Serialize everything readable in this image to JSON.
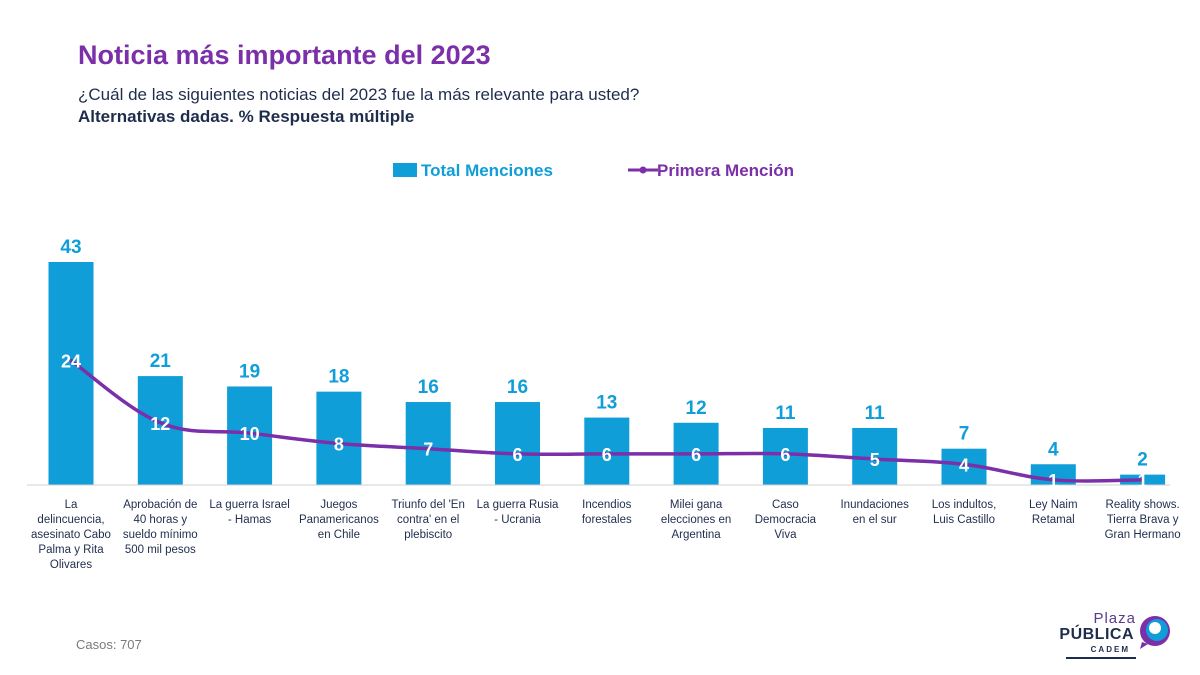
{
  "header": {
    "title": "Noticia más importante del 2023",
    "subtitle": "¿Cuál de las siguientes noticias del 2023 fue la más relevante para usted?",
    "subtitle2": "Alternativas dadas. % Respuesta múltiple"
  },
  "footer": {
    "cases": "Casos: 707"
  },
  "logo": {
    "line1": "Plaza",
    "line2": "PÚBLICA",
    "line3": "CADEM"
  },
  "colors": {
    "bar": "#0f9ed8",
    "line": "#7b2fa8",
    "bar_label": "#0f9ed8",
    "title": "#7b2fa8",
    "axis_text": "#1f2d4d"
  },
  "chart_data": {
    "type": "bar",
    "legend_position": "top-center",
    "categories": [
      [
        "La",
        "delincuencia,",
        "asesinato Cabo",
        "Palma y Rita",
        "Olivares"
      ],
      [
        "Aprobación de",
        "40 horas y",
        "sueldo mínimo",
        "500 mil pesos"
      ],
      [
        "La guerra Israel",
        "- Hamas"
      ],
      [
        "Juegos",
        "Panamericanos",
        "en Chile"
      ],
      [
        "Triunfo del 'En",
        "contra' en el",
        "plebiscito"
      ],
      [
        "La guerra Rusia",
        "- Ucrania"
      ],
      [
        "Incendios",
        "forestales"
      ],
      [
        "Milei gana",
        "elecciones en",
        "Argentina"
      ],
      [
        "Caso",
        "Democracia",
        "Viva"
      ],
      [
        "Inundaciones",
        "en el sur"
      ],
      [
        "Los indultos,",
        "Luis Castillo"
      ],
      [
        "Ley Naim",
        "Retamal"
      ],
      [
        "Reality shows.",
        "Tierra Brava y",
        "Gran Hermano"
      ]
    ],
    "series": [
      {
        "name": "Total Menciones",
        "type": "bar",
        "values": [
          43,
          21,
          19,
          18,
          16,
          16,
          13,
          12,
          11,
          11,
          7,
          4,
          2
        ]
      },
      {
        "name": "Primera Mención",
        "type": "line",
        "values": [
          24,
          12,
          10,
          8,
          7,
          6,
          6,
          6,
          6,
          5,
          4,
          1,
          1
        ]
      }
    ],
    "ylim": [
      0,
      43
    ],
    "grid": false
  }
}
